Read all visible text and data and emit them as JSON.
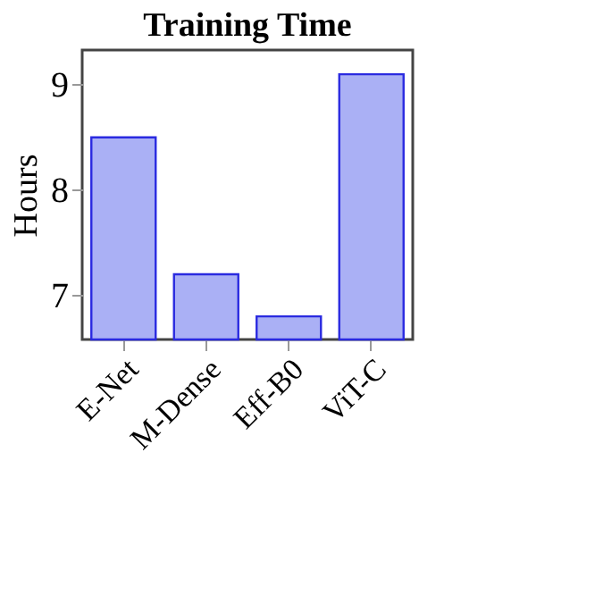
{
  "chart_data": {
    "type": "bar",
    "title": "Training Time",
    "ylabel": "Hours",
    "categories": [
      "E-Net",
      "M-Dense",
      "Eff-B0",
      "ViT-C"
    ],
    "values": [
      8.5,
      7.2,
      6.8,
      9.1
    ],
    "color": "#aab0f5",
    "ylim": [
      6.58,
      9.33
    ],
    "yticks": [
      7,
      8,
      9
    ],
    "grid": false
  }
}
